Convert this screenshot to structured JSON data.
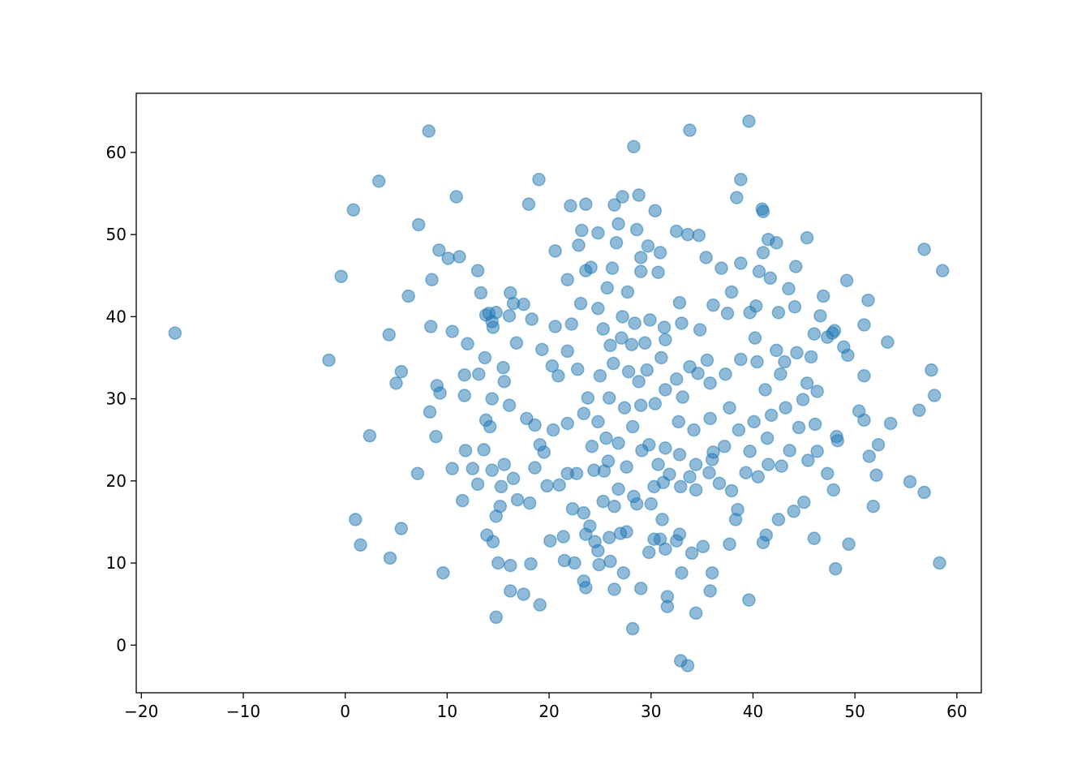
{
  "chart_data": {
    "type": "scatter",
    "title": "",
    "xlabel": "",
    "ylabel": "",
    "xlim": [
      -20.5,
      62.4
    ],
    "ylim": [
      -5.8,
      67.2
    ],
    "xticks": [
      -20,
      -10,
      0,
      10,
      20,
      30,
      40,
      50,
      60
    ],
    "xtick_labels": [
      "−20",
      "−10",
      "0",
      "10",
      "20",
      "30",
      "40",
      "50",
      "60"
    ],
    "yticks": [
      0,
      10,
      20,
      30,
      40,
      50,
      60
    ],
    "ytick_labels": [
      "0",
      "10",
      "20",
      "30",
      "40",
      "50",
      "60"
    ],
    "grid": false,
    "marker_color": "#1f77b4",
    "marker_alpha": 0.5,
    "points": [
      [
        -16.7,
        38.0
      ],
      [
        -1.6,
        34.7
      ],
      [
        -0.4,
        44.9
      ],
      [
        0.8,
        53.0
      ],
      [
        3.3,
        56.5
      ],
      [
        8.2,
        62.6
      ],
      [
        1.0,
        15.3
      ],
      [
        1.5,
        12.2
      ],
      [
        2.4,
        25.5
      ],
      [
        4.4,
        10.6
      ],
      [
        4.3,
        37.8
      ],
      [
        5.0,
        31.9
      ],
      [
        5.5,
        33.3
      ],
      [
        5.5,
        14.2
      ],
      [
        6.2,
        42.5
      ],
      [
        7.2,
        51.2
      ],
      [
        7.1,
        20.9
      ],
      [
        8.3,
        28.4
      ],
      [
        8.4,
        38.8
      ],
      [
        8.5,
        44.5
      ],
      [
        8.9,
        25.4
      ],
      [
        9.2,
        48.1
      ],
      [
        9.0,
        31.6
      ],
      [
        9.3,
        30.7
      ],
      [
        9.6,
        8.8
      ],
      [
        10.1,
        47.1
      ],
      [
        10.5,
        38.2
      ],
      [
        10.5,
        21.5
      ],
      [
        10.9,
        54.6
      ],
      [
        11.2,
        47.3
      ],
      [
        11.5,
        17.6
      ],
      [
        11.7,
        32.9
      ],
      [
        11.8,
        23.7
      ],
      [
        11.7,
        30.4
      ],
      [
        12.0,
        36.7
      ],
      [
        12.5,
        21.5
      ],
      [
        13.0,
        45.6
      ],
      [
        13.0,
        19.6
      ],
      [
        13.9,
        13.4
      ],
      [
        14.5,
        12.6
      ],
      [
        14.8,
        3.4
      ],
      [
        15.0,
        10.0
      ],
      [
        14.8,
        15.7
      ],
      [
        16.2,
        6.6
      ],
      [
        16.2,
        9.7
      ],
      [
        16.2,
        42.9
      ],
      [
        17.5,
        6.2
      ],
      [
        18.0,
        53.7
      ],
      [
        19.0,
        56.7
      ],
      [
        19.1,
        4.9
      ],
      [
        18.2,
        9.9
      ],
      [
        20.1,
        12.7
      ],
      [
        20.6,
        48.0
      ],
      [
        21.5,
        10.3
      ],
      [
        22.1,
        53.5
      ],
      [
        23.6,
        53.7
      ],
      [
        23.4,
        7.8
      ],
      [
        23.6,
        7.0
      ],
      [
        24.8,
        50.2
      ],
      [
        26.4,
        6.8
      ],
      [
        27.2,
        54.6
      ],
      [
        28.3,
        60.7
      ],
      [
        28.8,
        54.8
      ],
      [
        28.2,
        2.0
      ],
      [
        29.0,
        6.9
      ],
      [
        30.4,
        52.9
      ],
      [
        31.6,
        5.9
      ],
      [
        31.6,
        4.7
      ],
      [
        32.9,
        -1.9
      ],
      [
        33.6,
        -2.5
      ],
      [
        33.8,
        62.7
      ],
      [
        34.4,
        3.9
      ],
      [
        35.8,
        6.6
      ],
      [
        36.0,
        8.8
      ],
      [
        39.6,
        63.8
      ],
      [
        38.8,
        56.7
      ],
      [
        38.4,
        54.5
      ],
      [
        40.9,
        53.1
      ],
      [
        41.0,
        52.8
      ],
      [
        39.6,
        5.5
      ],
      [
        48.1,
        9.3
      ],
      [
        49.4,
        12.3
      ],
      [
        49.2,
        44.4
      ],
      [
        56.8,
        48.2
      ],
      [
        58.6,
        45.6
      ],
      [
        57.5,
        33.5
      ],
      [
        57.8,
        30.4
      ],
      [
        56.3,
        28.6
      ],
      [
        55.4,
        19.9
      ],
      [
        56.8,
        18.6
      ],
      [
        58.3,
        10.0
      ],
      [
        53.2,
        36.9
      ],
      [
        53.5,
        27.0
      ],
      [
        52.3,
        24.4
      ],
      [
        52.1,
        20.7
      ],
      [
        51.8,
        16.9
      ],
      [
        51.4,
        23.0
      ],
      [
        51.3,
        42.0
      ],
      [
        50.9,
        39.0
      ],
      [
        50.9,
        32.8
      ],
      [
        50.9,
        27.4
      ],
      [
        50.4,
        28.5
      ],
      [
        49.3,
        35.3
      ],
      [
        48.0,
        38.3
      ],
      [
        48.2,
        25.4
      ],
      [
        47.9,
        18.9
      ],
      [
        47.3,
        20.9
      ],
      [
        46.9,
        42.5
      ],
      [
        46.1,
        26.9
      ],
      [
        46.0,
        13.0
      ],
      [
        44.2,
        46.1
      ],
      [
        45.3,
        49.6
      ],
      [
        45.0,
        17.4
      ],
      [
        44.0,
        16.3
      ],
      [
        41.5,
        49.4
      ],
      [
        42.3,
        49.0
      ],
      [
        42.5,
        15.3
      ],
      [
        41.3,
        13.4
      ],
      [
        41.0,
        12.5
      ],
      [
        38.3,
        15.3
      ],
      [
        38.5,
        16.5
      ],
      [
        37.7,
        12.3
      ],
      [
        35.1,
        12.0
      ],
      [
        34.0,
        11.2
      ],
      [
        33.0,
        8.8
      ],
      [
        32.8,
        13.5
      ],
      [
        32.5,
        12.7
      ],
      [
        31.1,
        15.3
      ],
      [
        29.8,
        11.3
      ],
      [
        30.3,
        12.9
      ],
      [
        30.9,
        12.9
      ],
      [
        31.4,
        11.7
      ],
      [
        27.3,
        8.8
      ],
      [
        26.0,
        10.2
      ],
      [
        24.9,
        9.8
      ],
      [
        24.8,
        11.5
      ],
      [
        24.5,
        12.6
      ],
      [
        25.9,
        13.1
      ],
      [
        27.0,
        13.6
      ],
      [
        27.6,
        13.8
      ],
      [
        22.5,
        10.0
      ],
      [
        21.4,
        13.2
      ],
      [
        23.6,
        13.5
      ],
      [
        18.1,
        17.3
      ],
      [
        16.9,
        17.7
      ],
      [
        15.2,
        16.9
      ],
      [
        16.5,
        20.3
      ],
      [
        15.3,
        19.3
      ],
      [
        15.6,
        22.0
      ],
      [
        14.4,
        21.3
      ],
      [
        14.2,
        26.6
      ],
      [
        13.6,
        23.8
      ],
      [
        13.8,
        27.4
      ],
      [
        13.1,
        33.0
      ],
      [
        13.7,
        35.0
      ],
      [
        13.8,
        40.2
      ],
      [
        14.1,
        40.4
      ],
      [
        13.3,
        42.9
      ],
      [
        14.4,
        39.4
      ],
      [
        14.5,
        38.7
      ],
      [
        14.8,
        40.5
      ],
      [
        16.1,
        40.1
      ],
      [
        16.5,
        41.6
      ],
      [
        17.5,
        41.5
      ],
      [
        18.3,
        39.7
      ],
      [
        16.8,
        36.8
      ],
      [
        15.5,
        33.8
      ],
      [
        14.4,
        30.0
      ],
      [
        16.1,
        29.2
      ],
      [
        15.6,
        32.1
      ],
      [
        17.8,
        27.6
      ],
      [
        18.6,
        26.8
      ],
      [
        18.6,
        21.6
      ],
      [
        19.5,
        23.5
      ],
      [
        19.8,
        19.4
      ],
      [
        21.0,
        19.5
      ],
      [
        21.8,
        20.9
      ],
      [
        22.7,
        20.9
      ],
      [
        22.3,
        16.6
      ],
      [
        23.4,
        16.1
      ],
      [
        24.0,
        14.5
      ],
      [
        25.3,
        17.5
      ],
      [
        26.4,
        16.9
      ],
      [
        26.8,
        19.0
      ],
      [
        28.3,
        18.1
      ],
      [
        28.6,
        17.2
      ],
      [
        30.0,
        17.2
      ],
      [
        30.3,
        19.3
      ],
      [
        31.2,
        19.8
      ],
      [
        31.8,
        20.8
      ],
      [
        32.9,
        19.3
      ],
      [
        33.8,
        20.5
      ],
      [
        34.4,
        18.9
      ],
      [
        35.7,
        21.0
      ],
      [
        36.7,
        19.7
      ],
      [
        37.9,
        18.8
      ],
      [
        39.3,
        21.0
      ],
      [
        40.5,
        20.5
      ],
      [
        41.5,
        22.0
      ],
      [
        42.8,
        21.8
      ],
      [
        43.6,
        23.7
      ],
      [
        45.4,
        22.5
      ],
      [
        46.3,
        23.6
      ],
      [
        44.5,
        26.5
      ],
      [
        43.2,
        28.9
      ],
      [
        44.9,
        29.9
      ],
      [
        46.3,
        30.9
      ],
      [
        45.3,
        31.9
      ],
      [
        45.7,
        35.1
      ],
      [
        46.0,
        37.9
      ],
      [
        46.6,
        40.1
      ],
      [
        44.1,
        41.2
      ],
      [
        42.5,
        40.5
      ],
      [
        43.5,
        43.4
      ],
      [
        41.7,
        44.7
      ],
      [
        40.6,
        45.5
      ],
      [
        41.0,
        47.8
      ],
      [
        38.8,
        46.5
      ],
      [
        36.9,
        45.9
      ],
      [
        35.4,
        47.2
      ],
      [
        34.7,
        49.9
      ],
      [
        33.6,
        50.0
      ],
      [
        32.5,
        50.4
      ],
      [
        30.9,
        47.8
      ],
      [
        29.7,
        48.6
      ],
      [
        28.6,
        50.6
      ],
      [
        30.7,
        45.4
      ],
      [
        29.0,
        47.2
      ],
      [
        29.0,
        45.5
      ],
      [
        26.4,
        53.6
      ],
      [
        26.8,
        51.3
      ],
      [
        26.6,
        49.0
      ],
      [
        23.6,
        45.6
      ],
      [
        23.2,
        50.5
      ],
      [
        22.9,
        48.7
      ],
      [
        24.1,
        46.0
      ],
      [
        21.8,
        44.5
      ],
      [
        26.2,
        45.9
      ],
      [
        27.7,
        43.0
      ],
      [
        25.7,
        43.5
      ],
      [
        27.2,
        40.0
      ],
      [
        29.9,
        39.6
      ],
      [
        31.3,
        38.7
      ],
      [
        32.8,
        41.7
      ],
      [
        34.8,
        38.4
      ],
      [
        36.1,
        41.4
      ],
      [
        37.9,
        43.0
      ],
      [
        39.7,
        40.5
      ],
      [
        40.3,
        41.3
      ],
      [
        37.5,
        40.4
      ],
      [
        40.2,
        37.4
      ],
      [
        38.8,
        34.8
      ],
      [
        40.4,
        34.5
      ],
      [
        37.3,
        33.0
      ],
      [
        35.5,
        34.7
      ],
      [
        33.8,
        33.9
      ],
      [
        32.5,
        32.4
      ],
      [
        31.0,
        35.0
      ],
      [
        29.6,
        33.5
      ],
      [
        28.8,
        32.1
      ],
      [
        27.8,
        33.3
      ],
      [
        26.3,
        34.3
      ],
      [
        25.0,
        32.8
      ],
      [
        23.8,
        30.1
      ],
      [
        22.8,
        33.6
      ],
      [
        21.8,
        35.8
      ],
      [
        20.9,
        32.8
      ],
      [
        20.3,
        34.0
      ],
      [
        19.3,
        36.0
      ],
      [
        20.6,
        38.8
      ],
      [
        22.2,
        39.1
      ],
      [
        23.1,
        41.6
      ],
      [
        24.8,
        41.0
      ],
      [
        25.3,
        38.5
      ],
      [
        26.0,
        36.5
      ],
      [
        27.1,
        37.4
      ],
      [
        28.4,
        39.2
      ],
      [
        28.1,
        36.6
      ],
      [
        29.4,
        36.8
      ],
      [
        31.4,
        37.2
      ],
      [
        33.0,
        39.2
      ],
      [
        34.6,
        33.1
      ],
      [
        35.8,
        31.9
      ],
      [
        33.1,
        30.2
      ],
      [
        31.4,
        31.1
      ],
      [
        30.4,
        29.4
      ],
      [
        29.0,
        29.2
      ],
      [
        27.4,
        28.9
      ],
      [
        25.9,
        30.1
      ],
      [
        24.8,
        27.2
      ],
      [
        23.4,
        28.2
      ],
      [
        21.8,
        27.0
      ],
      [
        20.4,
        26.2
      ],
      [
        19.1,
        24.4
      ],
      [
        24.2,
        24.2
      ],
      [
        25.6,
        25.2
      ],
      [
        26.8,
        24.6
      ],
      [
        28.2,
        26.6
      ],
      [
        29.8,
        24.4
      ],
      [
        31.4,
        24.0
      ],
      [
        32.7,
        27.2
      ],
      [
        34.2,
        26.2
      ],
      [
        35.8,
        27.6
      ],
      [
        37.7,
        28.9
      ],
      [
        38.6,
        26.2
      ],
      [
        40.1,
        27.2
      ],
      [
        41.8,
        28.0
      ],
      [
        41.4,
        25.2
      ],
      [
        39.7,
        23.6
      ],
      [
        37.2,
        24.2
      ],
      [
        36.0,
        22.6
      ],
      [
        34.4,
        22.0
      ],
      [
        32.8,
        23.2
      ],
      [
        30.7,
        22.0
      ],
      [
        29.1,
        23.7
      ],
      [
        27.6,
        21.7
      ],
      [
        25.8,
        22.4
      ],
      [
        24.4,
        21.3
      ],
      [
        25.4,
        21.2
      ],
      [
        36.1,
        23.5
      ],
      [
        42.3,
        35.9
      ],
      [
        43.1,
        34.5
      ],
      [
        44.3,
        35.6
      ],
      [
        42.7,
        33.0
      ],
      [
        41.2,
        31.1
      ],
      [
        48.9,
        36.3
      ],
      [
        47.3,
        37.5
      ],
      [
        47.8,
        38.0
      ],
      [
        48.3,
        24.9
      ]
    ]
  }
}
